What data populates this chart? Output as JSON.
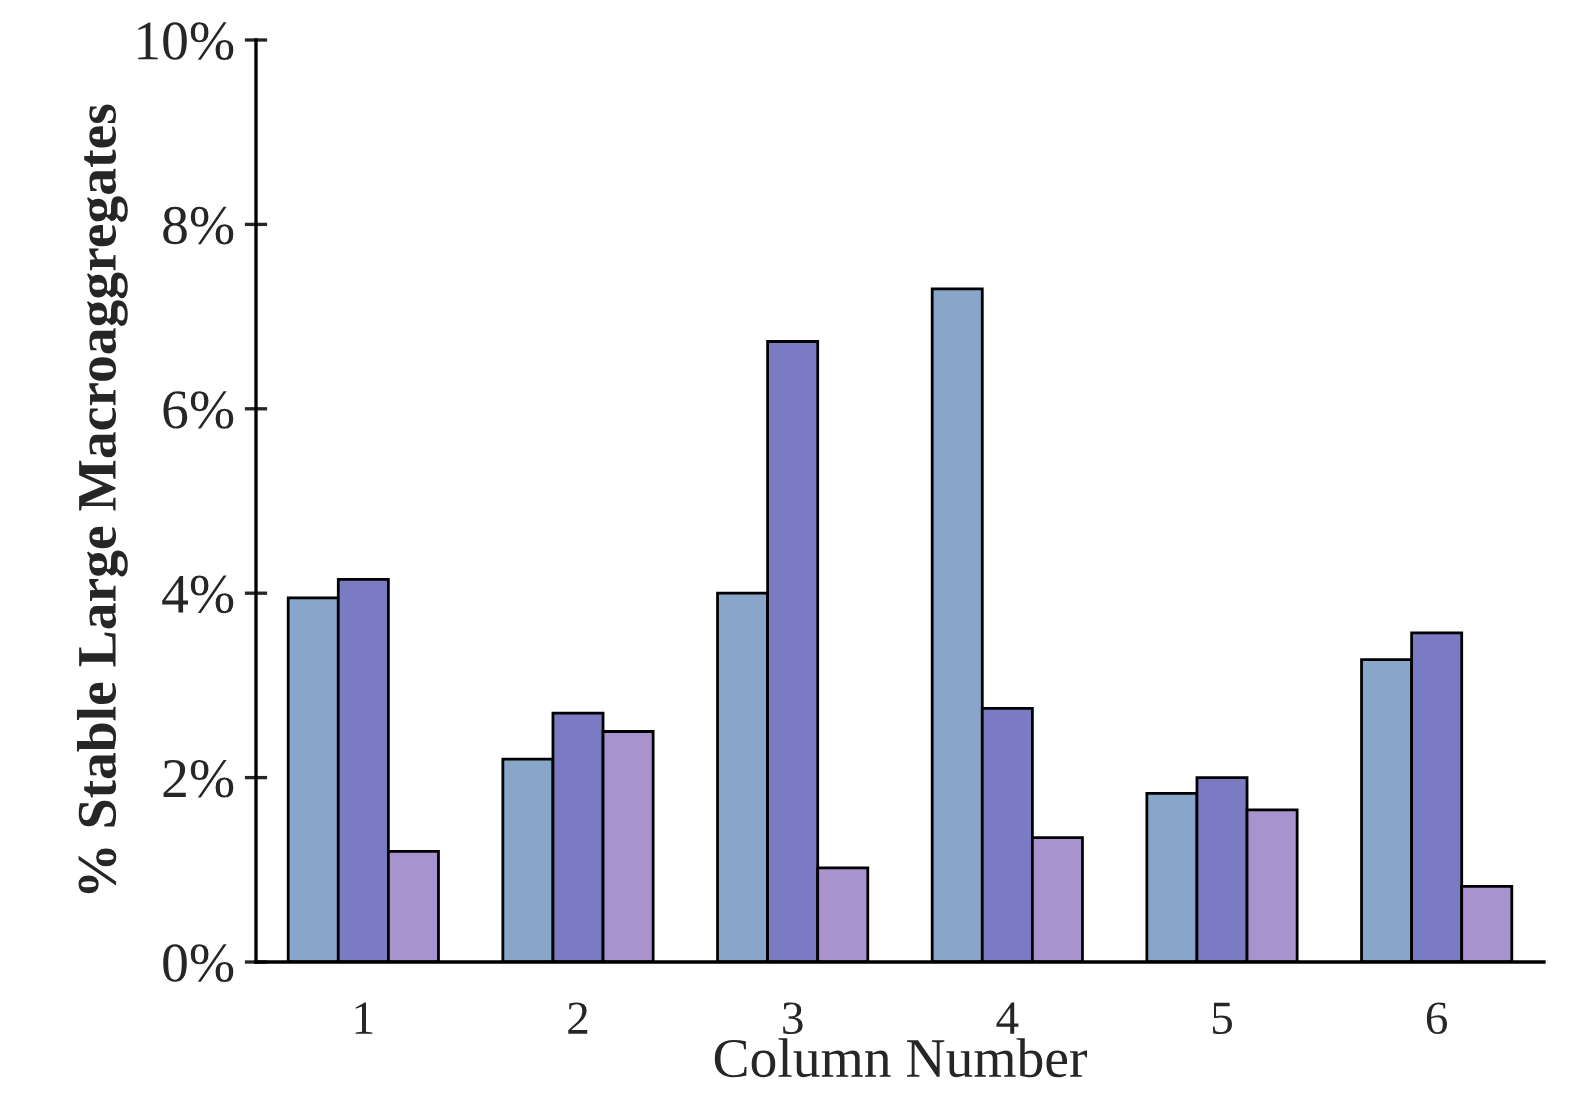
{
  "chart_data": {
    "type": "bar",
    "xlabel": "Column Number",
    "ylabel": "% Stable Large Macroaggregates",
    "categories": [
      "1",
      "2",
      "3",
      "4",
      "5",
      "6"
    ],
    "series": [
      {
        "color": "#87a6c9",
        "values": [
          3.95,
          2.2,
          4.0,
          7.3,
          1.83,
          3.28
        ]
      },
      {
        "color": "#7b7bc4",
        "values": [
          4.15,
          2.7,
          6.73,
          2.75,
          2.0,
          3.57
        ]
      },
      {
        "color": "#a893cf",
        "values": [
          1.2,
          2.5,
          1.02,
          1.35,
          1.65,
          0.82
        ]
      }
    ],
    "ylim": [
      0,
      10
    ],
    "yticks": [
      {
        "value": 0,
        "label": "0%"
      },
      {
        "value": 2,
        "label": "2%"
      },
      {
        "value": 4,
        "label": "4%"
      },
      {
        "value": 6,
        "label": "6%"
      },
      {
        "value": 8,
        "label": "8%"
      },
      {
        "value": 10,
        "label": "10%"
      }
    ],
    "grid": false
  }
}
